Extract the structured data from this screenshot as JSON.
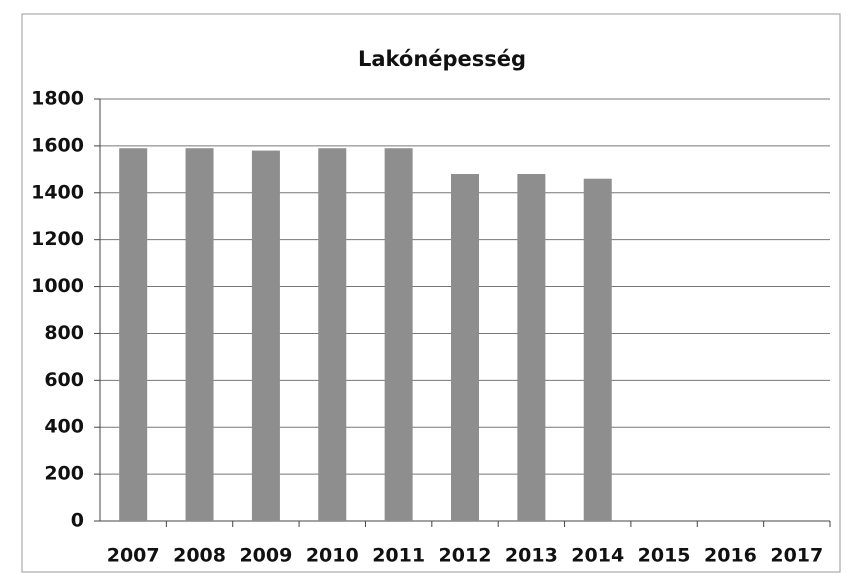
{
  "chart_data": {
    "type": "bar",
    "title": "Lakónépesség",
    "categories": [
      "2007",
      "2008",
      "2009",
      "2010",
      "2011",
      "2012",
      "2013",
      "2014",
      "2015",
      "2016",
      "2017"
    ],
    "values": [
      1590,
      1590,
      1580,
      1590,
      1590,
      1480,
      1480,
      1460,
      null,
      null,
      null
    ],
    "color": "#8e8e8e",
    "ylim": [
      0,
      1800
    ],
    "yticks": [
      0,
      200,
      400,
      600,
      800,
      1000,
      1200,
      1400,
      1600,
      1800
    ],
    "grid": true
  }
}
